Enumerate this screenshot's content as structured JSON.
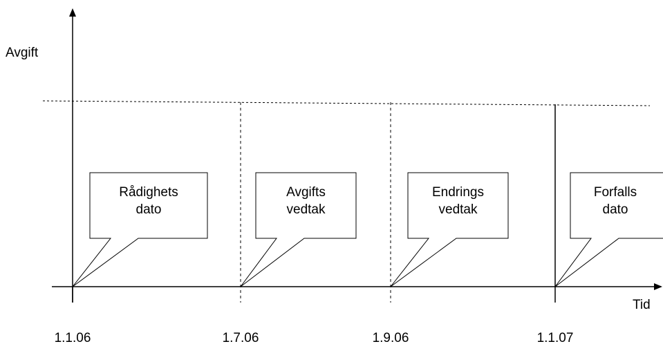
{
  "axes": {
    "y_label": "Avgift",
    "x_label": "Tid"
  },
  "events": [
    {
      "lines": [
        "Rådighets",
        "dato"
      ],
      "date": "1.1.06"
    },
    {
      "lines": [
        "Avgifts",
        "vedtak"
      ],
      "date": "1.7.06"
    },
    {
      "lines": [
        "Endrings",
        "vedtak"
      ],
      "date": "1.9.06"
    },
    {
      "lines": [
        "Forfalls",
        "dato"
      ],
      "date": "1.1.07"
    }
  ]
}
